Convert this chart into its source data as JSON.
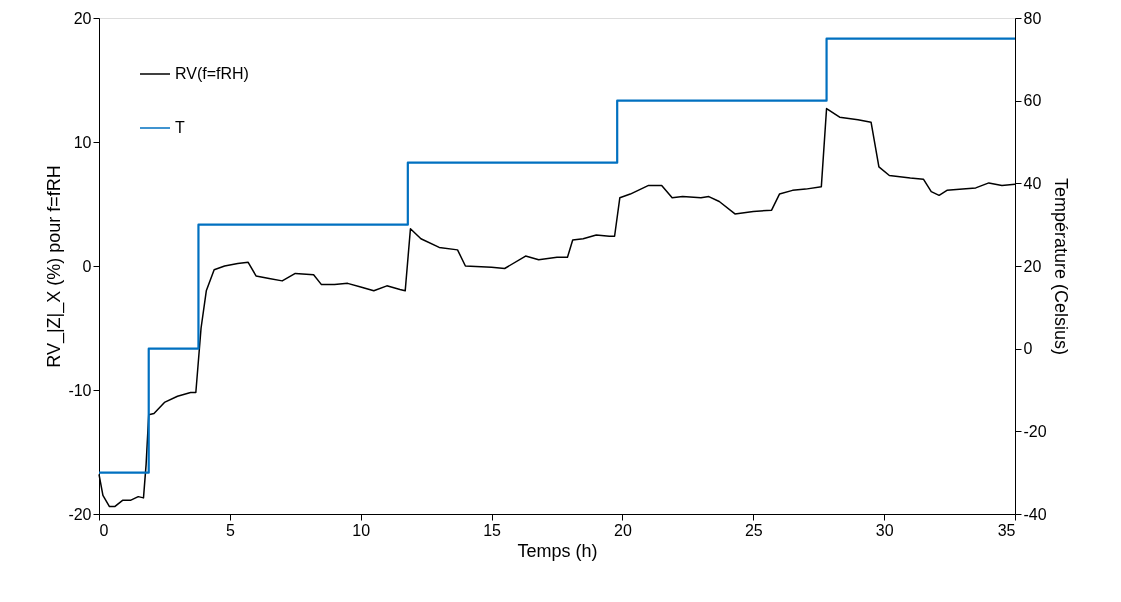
{
  "chart_data": {
    "type": "line",
    "xlabel": "Temps (h)",
    "ylabel": "RV_|Z|_X (%) pour f=fRH",
    "y2label": "Température (Celsius)",
    "xlim": [
      0,
      35
    ],
    "xticks": [
      0,
      5,
      10,
      15,
      20,
      25,
      30,
      35
    ],
    "ylim": [
      -20,
      20
    ],
    "yticks": [
      -20,
      -10,
      0,
      10,
      20
    ],
    "y2lim": [
      -40,
      80
    ],
    "y2ticks": [
      -40,
      -20,
      0,
      20,
      40,
      60,
      80
    ],
    "grid": false,
    "legend": "top left",
    "line_style": "solid",
    "marker": "none",
    "series": [
      {
        "name": "RV(f=fRH)",
        "color": "#000000",
        "x": [
          0,
          0.15,
          0.4,
          0.6,
          0.9,
          1.2,
          1.5,
          1.7,
          1.8,
          1.9,
          2.1,
          2.5,
          3,
          3.5,
          3.7,
          3.9,
          4.1,
          4.4,
          4.8,
          5.3,
          5.7,
          6.0,
          6.5,
          7,
          7.5,
          8.2,
          8.5,
          9,
          9.5,
          10,
          10.5,
          11,
          11.5,
          11.7,
          11.9,
          12.3,
          13,
          13.7,
          14,
          15,
          15.5,
          16.3,
          16.8,
          17.5,
          17.9,
          18.1,
          18.5,
          19,
          19.5,
          19.7,
          19.9,
          20.3,
          21,
          21.5,
          21.9,
          22.3,
          23,
          23.3,
          23.7,
          24.3,
          25,
          25.7,
          26,
          26.5,
          27,
          27.6,
          27.8,
          28.3,
          29,
          29.5,
          29.8,
          30.2,
          31,
          31.5,
          31.8,
          32.1,
          32.4,
          33,
          33.5,
          34,
          34.5,
          35
        ],
        "values": [
          -16.8,
          -18.5,
          -19.4,
          -19.4,
          -18.9,
          -18.9,
          -18.6,
          -18.7,
          -16,
          -12,
          -11.9,
          -11,
          -10.5,
          -10.2,
          -10.2,
          -5,
          -2,
          -0.3,
          0,
          0.2,
          0.3,
          -0.8,
          -1,
          -1.2,
          -0.6,
          -0.7,
          -1.5,
          -1.5,
          -1.4,
          -1.7,
          -2,
          -1.6,
          -1.9,
          -2,
          3,
          2.2,
          1.5,
          1.3,
          0,
          -0.1,
          -0.2,
          0.8,
          0.5,
          0.7,
          0.7,
          2.1,
          2.2,
          2.5,
          2.4,
          2.4,
          5.5,
          5.8,
          6.5,
          6.5,
          5.5,
          5.6,
          5.5,
          5.6,
          5.2,
          4.2,
          4.4,
          4.5,
          5.8,
          6.1,
          6.2,
          6.4,
          12.7,
          12,
          11.8,
          11.6,
          8,
          7.3,
          7.1,
          7,
          6.0,
          5.7,
          6.1,
          6.2,
          6.3,
          6.7,
          6.5,
          6.6
        ]
      },
      {
        "name": "T",
        "color": "#0070c0",
        "type": "step",
        "axis": "y2",
        "x": [
          0,
          1.9,
          3.8,
          11.8,
          19.8,
          27.8,
          35
        ],
        "values": [
          -30,
          0,
          30,
          45,
          60,
          75,
          75
        ]
      }
    ]
  }
}
